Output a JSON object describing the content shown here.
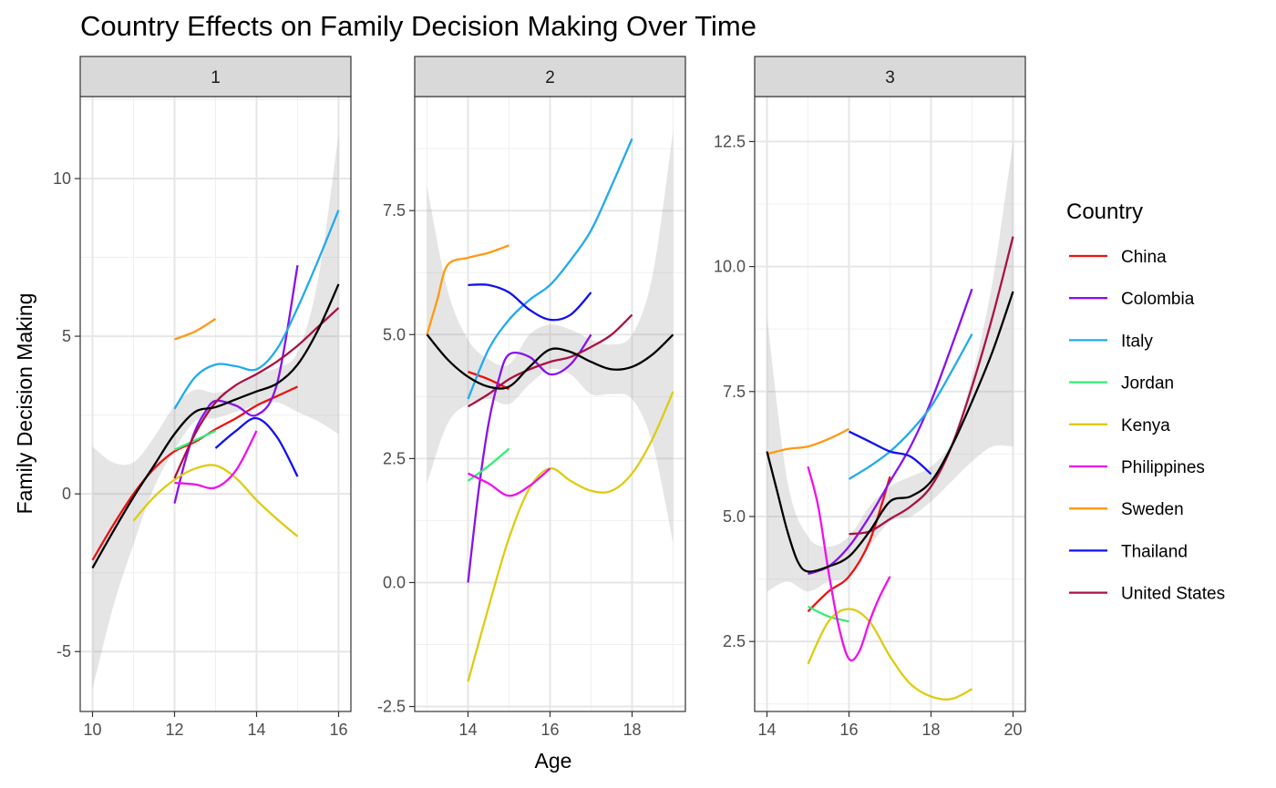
{
  "chart_data": {
    "type": "line",
    "title": "Country Effects on Family Decision Making Over Time",
    "xlabel": "Age",
    "ylabel": "Family Decision Making",
    "legend": {
      "title": "Country",
      "placement": "right",
      "entries": [
        {
          "name": "China",
          "color": "#ee1111"
        },
        {
          "name": "Colombia",
          "color": "#8811ee"
        },
        {
          "name": "Italy",
          "color": "#22aaee"
        },
        {
          "name": "Jordan",
          "color": "#33ee77"
        },
        {
          "name": "Kenya",
          "color": "#ddcc11"
        },
        {
          "name": "Philippines",
          "color": "#ee11ee"
        },
        {
          "name": "Sweden",
          "color": "#ff9911"
        },
        {
          "name": "Thailand",
          "color": "#1111ee"
        },
        {
          "name": "United States",
          "color": "#aa1144"
        }
      ]
    },
    "grid": true,
    "panels": [
      {
        "label": "1",
        "xlim": [
          9.7,
          16.3
        ],
        "ylim": [
          -6.9,
          12.6
        ],
        "xticks": [
          10,
          12,
          14,
          16
        ],
        "yticks": [
          -5,
          0,
          5,
          10
        ],
        "ytick_labels": [
          "-5",
          "0",
          "5",
          "10"
        ],
        "overall_band": {
          "x": [
            10,
            10.5,
            11,
            11.5,
            12,
            12.5,
            13,
            13.5,
            14,
            14.5,
            15,
            15.5,
            16
          ],
          "lower": [
            -6.2,
            -3.6,
            -1.6,
            0.2,
            1.4,
            2.3,
            2.4,
            2.6,
            2.8,
            2.9,
            2.6,
            2.3,
            1.9
          ],
          "upper": [
            1.5,
            1.0,
            1.0,
            1.8,
            2.8,
            3.3,
            3.2,
            3.4,
            3.8,
            4.0,
            4.5,
            6.8,
            11.4
          ]
        },
        "series": [
          {
            "name": "Overall",
            "color": "#000000",
            "x": [
              10,
              10.5,
              11,
              11.5,
              12,
              12.5,
              13,
              13.5,
              14,
              14.5,
              15,
              15.5,
              16
            ],
            "y": [
              -2.35,
              -1.2,
              -0.1,
              0.9,
              1.9,
              2.6,
              2.75,
              3.0,
              3.25,
              3.5,
              4.1,
              5.2,
              6.65
            ]
          },
          {
            "name": "China",
            "color": "#ee1111",
            "x": [
              10,
              10.5,
              11,
              11.5,
              12,
              12.5,
              13,
              13.5,
              14,
              14.5,
              15
            ],
            "y": [
              -2.1,
              -1.0,
              0.0,
              0.8,
              1.35,
              1.65,
              2.05,
              2.4,
              2.8,
              3.1,
              3.4
            ]
          },
          {
            "name": "Colombia",
            "color": "#8811ee",
            "x": [
              12,
              12.25,
              12.5,
              12.75,
              13,
              13.5,
              14,
              14.5,
              15
            ],
            "y": [
              -0.3,
              1.0,
              2.0,
              2.6,
              2.95,
              2.8,
              2.5,
              3.5,
              7.25
            ]
          },
          {
            "name": "Italy",
            "color": "#22aaee",
            "x": [
              12,
              12.5,
              13,
              13.5,
              14,
              14.5,
              15,
              15.5,
              16
            ],
            "y": [
              2.7,
              3.7,
              4.1,
              4.05,
              3.95,
              4.6,
              5.9,
              7.4,
              9.0
            ]
          },
          {
            "name": "Jordan",
            "color": "#33ee77",
            "x": [
              12,
              12.5,
              13
            ],
            "y": [
              1.4,
              1.7,
              2.0
            ]
          },
          {
            "name": "Kenya",
            "color": "#ddcc11",
            "x": [
              11,
              11.5,
              12,
              12.5,
              13,
              13.5,
              14,
              14.5,
              15
            ],
            "y": [
              -0.85,
              -0.1,
              0.45,
              0.8,
              0.9,
              0.5,
              -0.2,
              -0.8,
              -1.35
            ]
          },
          {
            "name": "Philippines",
            "color": "#ee11ee",
            "x": [
              12,
              12.5,
              13,
              13.5,
              14
            ],
            "y": [
              0.35,
              0.3,
              0.2,
              0.75,
              2.0
            ]
          },
          {
            "name": "Sweden",
            "color": "#ff9911",
            "x": [
              12,
              12.5,
              13
            ],
            "y": [
              4.9,
              5.15,
              5.55
            ]
          },
          {
            "name": "Thailand",
            "color": "#1111ee",
            "x": [
              13,
              13.5,
              14,
              14.5,
              15
            ],
            "y": [
              1.45,
              2.0,
              2.4,
              1.8,
              0.55
            ]
          },
          {
            "name": "United States",
            "color": "#aa1144",
            "x": [
              12,
              12.5,
              13,
              13.5,
              14,
              14.5,
              15,
              15.5,
              16
            ],
            "y": [
              0.5,
              1.9,
              2.9,
              3.45,
              3.8,
              4.2,
              4.7,
              5.3,
              5.9
            ]
          }
        ]
      },
      {
        "label": "2",
        "xlim": [
          12.7,
          19.3
        ],
        "ylim": [
          -2.6,
          9.8
        ],
        "xticks": [
          14,
          16,
          18
        ],
        "yticks": [
          -2.5,
          0.0,
          2.5,
          5.0,
          7.5
        ],
        "ytick_labels": [
          "-2.5",
          "0.0",
          "2.5",
          "5.0",
          "7.5"
        ],
        "overall_band": {
          "x": [
            13,
            13.5,
            14,
            14.5,
            15,
            15.5,
            16,
            16.5,
            17,
            17.5,
            18,
            18.5,
            19
          ],
          "lower": [
            2.0,
            3.2,
            3.6,
            3.7,
            3.6,
            4.0,
            4.3,
            4.2,
            3.8,
            3.8,
            3.7,
            2.8,
            0.8
          ],
          "upper": [
            8.0,
            5.9,
            4.9,
            4.5,
            4.4,
            5.0,
            5.2,
            5.1,
            4.9,
            4.8,
            5.0,
            6.2,
            9.1
          ]
        },
        "series": [
          {
            "name": "Overall",
            "color": "#000000",
            "x": [
              13,
              13.5,
              14,
              14.5,
              15,
              15.5,
              16,
              16.5,
              17,
              17.5,
              18,
              18.5,
              19
            ],
            "y": [
              5.0,
              4.5,
              4.15,
              3.95,
              3.95,
              4.35,
              4.7,
              4.65,
              4.45,
              4.3,
              4.35,
              4.6,
              5.0
            ]
          },
          {
            "name": "China",
            "color": "#ee1111",
            "x": [
              14,
              14.5,
              15
            ],
            "y": [
              4.25,
              4.1,
              3.9
            ]
          },
          {
            "name": "Colombia",
            "color": "#8811ee",
            "x": [
              14,
              14.25,
              14.5,
              14.75,
              15,
              15.5,
              16,
              16.5,
              17
            ],
            "y": [
              0.0,
              1.8,
              3.2,
              4.1,
              4.6,
              4.55,
              4.2,
              4.4,
              5.0
            ]
          },
          {
            "name": "Italy",
            "color": "#22aaee",
            "x": [
              14,
              14.5,
              15,
              15.5,
              16,
              16.5,
              17,
              17.5,
              18
            ],
            "y": [
              3.7,
              4.7,
              5.3,
              5.7,
              6.0,
              6.5,
              7.1,
              8.0,
              8.95
            ]
          },
          {
            "name": "Jordan",
            "color": "#33ee77",
            "x": [
              14,
              14.5,
              15
            ],
            "y": [
              2.05,
              2.35,
              2.7
            ]
          },
          {
            "name": "Kenya",
            "color": "#ddcc11",
            "x": [
              14,
              14.5,
              15,
              15.5,
              16,
              16.5,
              17,
              17.5,
              18,
              18.5,
              19
            ],
            "y": [
              -2.0,
              -0.5,
              0.9,
              1.9,
              2.3,
              2.05,
              1.85,
              1.85,
              2.2,
              2.9,
              3.85
            ]
          },
          {
            "name": "Philippines",
            "color": "#ee11ee",
            "x": [
              14,
              14.5,
              15,
              15.5,
              16
            ],
            "y": [
              2.2,
              2.0,
              1.75,
              1.95,
              2.3
            ]
          },
          {
            "name": "Sweden",
            "color": "#ff9911",
            "x": [
              13,
              13.25,
              13.5,
              14,
              14.5,
              15
            ],
            "y": [
              5.0,
              5.7,
              6.4,
              6.55,
              6.65,
              6.8
            ]
          },
          {
            "name": "Thailand",
            "color": "#1111ee",
            "x": [
              14,
              14.5,
              15,
              15.5,
              16,
              16.5,
              17
            ],
            "y": [
              6.0,
              6.0,
              5.85,
              5.5,
              5.3,
              5.4,
              5.85
            ]
          },
          {
            "name": "United States",
            "color": "#aa1144",
            "x": [
              14,
              14.5,
              15,
              15.5,
              16,
              16.5,
              17,
              17.5,
              18
            ],
            "y": [
              3.55,
              3.8,
              4.1,
              4.3,
              4.45,
              4.55,
              4.75,
              5.0,
              5.4
            ]
          }
        ]
      },
      {
        "label": "3",
        "xlim": [
          13.7,
          20.3
        ],
        "ylim": [
          1.1,
          13.4
        ],
        "xticks": [
          14,
          16,
          18,
          20
        ],
        "yticks": [
          2.5,
          5.0,
          7.5,
          10.0,
          12.5
        ],
        "ytick_labels": [
          "2.5",
          "5.0",
          "7.5",
          "10.0",
          "12.5"
        ],
        "overall_band": {
          "x": [
            14,
            14.5,
            15,
            15.5,
            16,
            16.5,
            17,
            17.5,
            18,
            18.5,
            19,
            19.5,
            20
          ],
          "lower": [
            3.5,
            3.7,
            3.5,
            3.7,
            3.8,
            4.4,
            4.9,
            5.0,
            5.3,
            5.7,
            6.1,
            6.4,
            6.4
          ],
          "upper": [
            9.0,
            5.7,
            4.6,
            4.4,
            4.6,
            5.2,
            5.6,
            5.8,
            6.0,
            6.5,
            7.8,
            9.7,
            12.5
          ]
        },
        "series": [
          {
            "name": "Overall",
            "color": "#000000",
            "x": [
              14,
              14.25,
              14.5,
              14.75,
              15,
              15.5,
              16,
              16.5,
              17,
              17.5,
              18,
              18.5,
              19,
              19.5,
              20
            ],
            "y": [
              6.3,
              5.5,
              4.7,
              4.1,
              3.9,
              4.0,
              4.2,
              4.7,
              5.3,
              5.4,
              5.7,
              6.4,
              7.3,
              8.3,
              9.5
            ]
          },
          {
            "name": "China",
            "color": "#ee1111",
            "x": [
              15,
              15.5,
              16,
              16.5,
              17
            ],
            "y": [
              3.1,
              3.5,
              3.8,
              4.5,
              5.8
            ]
          },
          {
            "name": "Colombia",
            "color": "#8811ee",
            "x": [
              15,
              15.5,
              16,
              16.5,
              17,
              17.5,
              18,
              18.5,
              19
            ],
            "y": [
              3.85,
              4.0,
              4.4,
              5.0,
              5.7,
              6.4,
              7.3,
              8.4,
              9.55
            ]
          },
          {
            "name": "Italy",
            "color": "#22aaee",
            "x": [
              16,
              16.5,
              17,
              17.5,
              18,
              18.5,
              19
            ],
            "y": [
              5.75,
              6.0,
              6.3,
              6.7,
              7.2,
              7.9,
              8.65
            ]
          },
          {
            "name": "Jordan",
            "color": "#33ee77",
            "x": [
              15,
              15.5,
              16
            ],
            "y": [
              3.2,
              3.0,
              2.9
            ]
          },
          {
            "name": "Kenya",
            "color": "#ddcc11",
            "x": [
              15,
              15.5,
              16,
              16.5,
              17,
              17.5,
              18,
              18.5,
              19
            ],
            "y": [
              2.05,
              2.9,
              3.15,
              2.9,
              2.2,
              1.65,
              1.4,
              1.35,
              1.55
            ]
          },
          {
            "name": "Philippines",
            "color": "#ee11ee",
            "x": [
              15,
              15.25,
              15.5,
              15.75,
              16,
              16.25,
              16.5,
              16.75,
              17
            ],
            "y": [
              6.0,
              5.2,
              3.9,
              2.8,
              2.15,
              2.3,
              2.9,
              3.4,
              3.8
            ]
          },
          {
            "name": "Sweden",
            "color": "#ff9911",
            "x": [
              14,
              14.5,
              15,
              15.5,
              16
            ],
            "y": [
              6.25,
              6.35,
              6.4,
              6.55,
              6.75
            ]
          },
          {
            "name": "Thailand",
            "color": "#1111ee",
            "x": [
              16,
              16.5,
              17,
              17.5,
              18
            ],
            "y": [
              6.7,
              6.5,
              6.3,
              6.2,
              5.85
            ]
          },
          {
            "name": "United States",
            "color": "#aa1144",
            "x": [
              16,
              16.5,
              17,
              17.5,
              18,
              18.5,
              19,
              19.5,
              20
            ],
            "y": [
              4.65,
              4.7,
              4.95,
              5.2,
              5.6,
              6.4,
              7.6,
              9.0,
              10.6
            ]
          }
        ]
      }
    ]
  }
}
